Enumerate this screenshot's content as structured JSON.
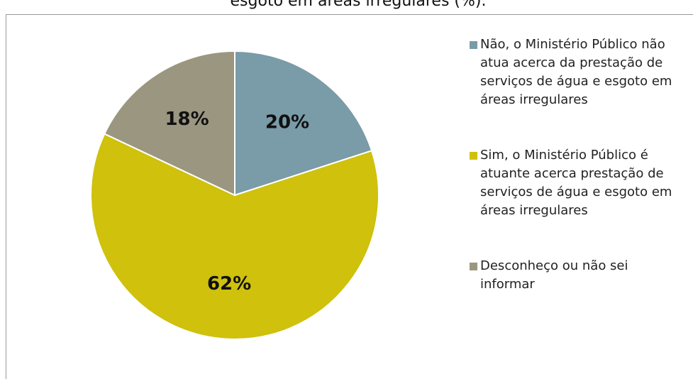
{
  "chart_data": {
    "type": "pie",
    "title": "esgoto em áreas irregulares (%).",
    "categories": [
      "Não, o Ministério Público não atua acerca da prestação de serviços de água e esgoto em áreas irregulares",
      "Sim, o Ministério Público é atuante acerca prestação de serviços de água e esgoto em áreas irregulares",
      "Desconheço ou não sei informar"
    ],
    "values": [
      20,
      62,
      18
    ],
    "value_labels": [
      "20%",
      "62%",
      "18%"
    ],
    "colors": [
      "#7a9ba8",
      "#cfc10c",
      "#9a9680"
    ],
    "legend": "right"
  }
}
